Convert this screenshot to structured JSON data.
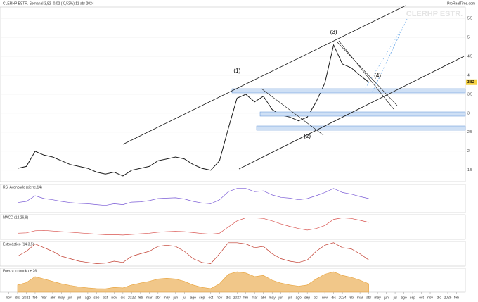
{
  "chart_data": [
    {
      "type": "line",
      "title": "CLERHP ESTR. Semanal 3,82 -0,02 (-0,52%) 11 abr 2024",
      "watermark": "CLERHP ESTR.",
      "source": "ProRealTime.com",
      "last_label": "3,82",
      "x": [
        "2020-12",
        "2021-01",
        "2021-02",
        "2021-03",
        "2021-04",
        "2021-05",
        "2021-06",
        "2021-07",
        "2021-08",
        "2021-09",
        "2021-10",
        "2021-11",
        "2021-12",
        "2022-01",
        "2022-02",
        "2022-03",
        "2022-04",
        "2022-05",
        "2022-06",
        "2022-07",
        "2022-08",
        "2022-09",
        "2022-10",
        "2022-11",
        "2022-12",
        "2023-01",
        "2023-02",
        "2023-03",
        "2023-04",
        "2023-05",
        "2023-06",
        "2023-07",
        "2023-08",
        "2023-09",
        "2023-10",
        "2023-11",
        "2023-12",
        "2024-01",
        "2024-02",
        "2024-03",
        "2024-04"
      ],
      "series": [
        {
          "name": "CLERHP ESTR.",
          "color": "#1a1a1a",
          "values": [
            1.55,
            1.6,
            2.0,
            1.9,
            1.85,
            1.75,
            1.65,
            1.6,
            1.55,
            1.45,
            1.4,
            1.45,
            1.35,
            1.5,
            1.55,
            1.6,
            1.75,
            1.8,
            1.85,
            1.8,
            1.65,
            1.55,
            1.5,
            1.75,
            2.6,
            3.4,
            3.5,
            3.3,
            3.45,
            3.1,
            2.95,
            2.9,
            2.8,
            2.9,
            3.3,
            3.8,
            4.8,
            4.3,
            4.2,
            4.0,
            3.82
          ]
        }
      ],
      "xlim": [
        "2020-10",
        "2025-03"
      ],
      "ylim": [
        1.2,
        5.8
      ],
      "yticks": [
        {
          "value": 1.5,
          "label": "1,5"
        },
        2,
        {
          "value": 2.5,
          "label": "2,5"
        },
        3,
        {
          "value": 3.5,
          "label": "3,5"
        },
        4,
        {
          "value": 4.5,
          "label": "4,5"
        },
        5,
        {
          "value": 5.5,
          "label": "5,5"
        }
      ],
      "annotations": [
        {
          "text": "(1)",
          "x": "2023-01",
          "y": 4.11
        },
        {
          "text": "(2)",
          "x": "2023-09",
          "y": 2.39
        },
        {
          "text": "(3)",
          "x": "2023-12",
          "y": 5.13
        },
        {
          "text": "(4)",
          "x": "2024-05",
          "y": 3.98
        }
      ]
    },
    {
      "type": "line",
      "title": "RSI Avanzado (cierre,14)",
      "x": [
        "2020-12",
        "2021-01",
        "2021-02",
        "2021-03",
        "2021-04",
        "2021-05",
        "2021-06",
        "2021-07",
        "2021-08",
        "2021-09",
        "2021-10",
        "2021-11",
        "2021-12",
        "2022-01",
        "2022-02",
        "2022-03",
        "2022-04",
        "2022-05",
        "2022-06",
        "2022-07",
        "2022-08",
        "2022-09",
        "2022-10",
        "2022-11",
        "2022-12",
        "2023-01",
        "2023-02",
        "2023-03",
        "2023-04",
        "2023-05",
        "2023-06",
        "2023-07",
        "2023-08",
        "2023-09",
        "2023-10",
        "2023-11",
        "2023-12",
        "2024-01",
        "2024-02",
        "2024-03",
        "2024-04"
      ],
      "series": [
        {
          "name": "RSI",
          "color": "#7b5cd6",
          "values": [
            45,
            48,
            62,
            55,
            52,
            48,
            45,
            43,
            42,
            40,
            38,
            42,
            40,
            46,
            47,
            50,
            55,
            56,
            57,
            54,
            48,
            44,
            42,
            52,
            72,
            80,
            80,
            72,
            74,
            64,
            58,
            56,
            52,
            55,
            62,
            70,
            80,
            70,
            66,
            60,
            55
          ]
        }
      ],
      "xlim": [
        "2020-10",
        "2025-03"
      ],
      "ylim": [
        20,
        90
      ]
    },
    {
      "type": "line",
      "title": "MACD (12,26,9)",
      "x": [
        "2020-12",
        "2021-01",
        "2021-02",
        "2021-03",
        "2021-04",
        "2021-05",
        "2021-06",
        "2021-07",
        "2021-08",
        "2021-09",
        "2021-10",
        "2021-11",
        "2021-12",
        "2022-01",
        "2022-02",
        "2022-03",
        "2022-04",
        "2022-05",
        "2022-06",
        "2022-07",
        "2022-08",
        "2022-09",
        "2022-10",
        "2022-11",
        "2022-12",
        "2023-01",
        "2023-02",
        "2023-03",
        "2023-04",
        "2023-05",
        "2023-06",
        "2023-07",
        "2023-08",
        "2023-09",
        "2023-10",
        "2023-11",
        "2023-12",
        "2024-01",
        "2024-02",
        "2024-03",
        "2024-04"
      ],
      "series": [
        {
          "name": "MACD",
          "color": "#d9534f",
          "values": [
            0.0,
            0.01,
            0.08,
            0.09,
            0.07,
            0.05,
            0.03,
            0.01,
            -0.01,
            -0.03,
            -0.05,
            -0.05,
            -0.06,
            -0.04,
            -0.02,
            0,
            0.03,
            0.05,
            0.06,
            0.05,
            0.02,
            -0.01,
            -0.03,
            0.0,
            0.2,
            0.4,
            0.5,
            0.5,
            0.48,
            0.4,
            0.3,
            0.22,
            0.15,
            0.1,
            0.15,
            0.25,
            0.45,
            0.5,
            0.48,
            0.42,
            0.35
          ]
        }
      ],
      "xlim": [
        "2020-10",
        "2025-03"
      ],
      "ylim": [
        -0.2,
        0.6
      ]
    },
    {
      "type": "line",
      "title": "Estocástico (14,3,5)",
      "x": [
        "2020-12",
        "2021-01",
        "2021-02",
        "2021-03",
        "2021-04",
        "2021-05",
        "2021-06",
        "2021-07",
        "2021-08",
        "2021-09",
        "2021-10",
        "2021-11",
        "2021-12",
        "2022-01",
        "2022-02",
        "2022-03",
        "2022-04",
        "2022-05",
        "2022-06",
        "2022-07",
        "2022-08",
        "2022-09",
        "2022-10",
        "2022-11",
        "2022-12",
        "2023-01",
        "2023-02",
        "2023-03",
        "2023-04",
        "2023-05",
        "2023-06",
        "2023-07",
        "2023-08",
        "2023-09",
        "2023-10",
        "2023-11",
        "2023-12",
        "2024-01",
        "2024-02",
        "2024-03",
        "2024-04"
      ],
      "series": [
        {
          "name": "Estocástico",
          "color": "#c0392b",
          "values": [
            40,
            60,
            90,
            75,
            60,
            40,
            30,
            20,
            15,
            10,
            12,
            20,
            15,
            40,
            50,
            60,
            80,
            85,
            80,
            60,
            30,
            15,
            10,
            50,
            95,
            95,
            90,
            75,
            80,
            50,
            30,
            20,
            15,
            25,
            60,
            85,
            95,
            75,
            70,
            50,
            25
          ]
        }
      ],
      "xlim": [
        "2020-10",
        "2025-03"
      ],
      "ylim": [
        0,
        100
      ]
    },
    {
      "type": "area",
      "title": "Fuerza Ichimoku + 26",
      "x": [
        "2020-12",
        "2021-01",
        "2021-02",
        "2021-03",
        "2021-04",
        "2021-05",
        "2021-06",
        "2021-07",
        "2021-08",
        "2021-09",
        "2021-10",
        "2021-11",
        "2021-12",
        "2022-01",
        "2022-02",
        "2022-03",
        "2022-04",
        "2022-05",
        "2022-06",
        "2022-07",
        "2022-08",
        "2022-09",
        "2022-10",
        "2022-11",
        "2022-12",
        "2023-01",
        "2023-02",
        "2023-03",
        "2023-04",
        "2023-05",
        "2023-06",
        "2023-07",
        "2023-08",
        "2023-09",
        "2023-10",
        "2023-11",
        "2023-12",
        "2024-01",
        "2024-02",
        "2024-03",
        "2024-04"
      ],
      "series": [
        {
          "name": "Fuerza",
          "color": "#e8a23a",
          "values": [
            30,
            40,
            65,
            55,
            45,
            35,
            28,
            22,
            18,
            15,
            14,
            20,
            18,
            30,
            38,
            45,
            55,
            58,
            55,
            45,
            30,
            20,
            15,
            35,
            75,
            85,
            80,
            65,
            70,
            50,
            38,
            30,
            25,
            30,
            55,
            75,
            85,
            70,
            62,
            50,
            35
          ]
        }
      ],
      "xlim": [
        "2020-10",
        "2025-03"
      ],
      "ylim": [
        0,
        100
      ],
      "xticks": [
        {
          "value": "2020-11",
          "label": "nov"
        },
        {
          "value": "2020-12",
          "label": "dic"
        },
        {
          "value": "2021-01",
          "label": "2021"
        },
        {
          "value": "2021-02",
          "label": "feb"
        },
        {
          "value": "2021-03",
          "label": "mar"
        },
        {
          "value": "2021-04",
          "label": "abr"
        },
        {
          "value": "2021-05",
          "label": "may"
        },
        {
          "value": "2021-06",
          "label": "jun"
        },
        {
          "value": "2021-07",
          "label": "jul"
        },
        {
          "value": "2021-08",
          "label": "ago"
        },
        {
          "value": "2021-09",
          "label": "sep"
        },
        {
          "value": "2021-10",
          "label": "oct"
        },
        {
          "value": "2021-11",
          "label": "nov"
        },
        {
          "value": "2021-12",
          "label": "dic"
        },
        {
          "value": "2022-01",
          "label": "2022"
        },
        {
          "value": "2022-02",
          "label": "feb"
        },
        {
          "value": "2022-03",
          "label": "mar"
        },
        {
          "value": "2022-04",
          "label": "abr"
        },
        {
          "value": "2022-05",
          "label": "may"
        },
        {
          "value": "2022-06",
          "label": "jun"
        },
        {
          "value": "2022-07",
          "label": "jul"
        },
        {
          "value": "2022-08",
          "label": "ago"
        },
        {
          "value": "2022-09",
          "label": "sep"
        },
        {
          "value": "2022-10",
          "label": "oct"
        },
        {
          "value": "2022-11",
          "label": "nov"
        },
        {
          "value": "2022-12",
          "label": "dic"
        },
        {
          "value": "2023-01",
          "label": "2023"
        },
        {
          "value": "2023-02",
          "label": "feb"
        },
        {
          "value": "2023-03",
          "label": "mar"
        },
        {
          "value": "2023-04",
          "label": "abr"
        },
        {
          "value": "2023-05",
          "label": "may"
        },
        {
          "value": "2023-06",
          "label": "jun"
        },
        {
          "value": "2023-07",
          "label": "jul"
        },
        {
          "value": "2023-08",
          "label": "ago"
        },
        {
          "value": "2023-09",
          "label": "sep"
        },
        {
          "value": "2023-10",
          "label": "oct"
        },
        {
          "value": "2023-11",
          "label": "nov"
        },
        {
          "value": "2023-12",
          "label": "dic"
        },
        {
          "value": "2024-01",
          "label": "2024"
        },
        {
          "value": "2024-02",
          "label": "feb"
        },
        {
          "value": "2024-03",
          "label": "mar"
        },
        {
          "value": "2024-04",
          "label": "abr"
        },
        {
          "value": "2024-05",
          "label": "may"
        },
        {
          "value": "2024-06",
          "label": "jun"
        },
        {
          "value": "2024-07",
          "label": "jul"
        },
        {
          "value": "2024-08",
          "label": "ago"
        },
        {
          "value": "2024-09",
          "label": "sep"
        },
        {
          "value": "2024-10",
          "label": "oct"
        },
        {
          "value": "2024-11",
          "label": "nov"
        },
        {
          "value": "2024-12",
          "label": "dic"
        },
        {
          "value": "2025-01",
          "label": "2025"
        },
        {
          "value": "2025-02",
          "label": "feb"
        }
      ]
    }
  ]
}
